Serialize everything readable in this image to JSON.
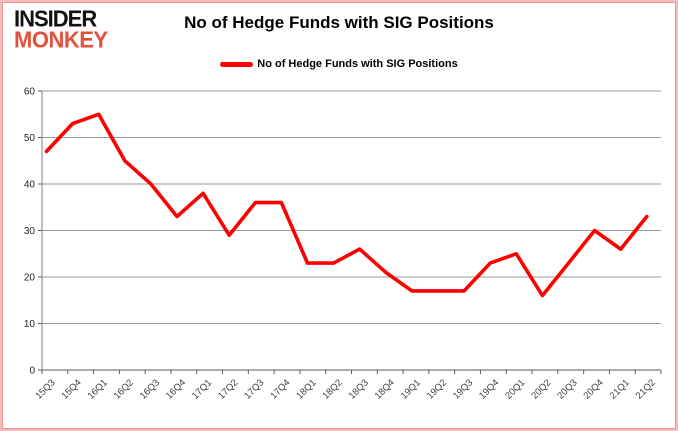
{
  "logo": {
    "line1": "INSIDER",
    "line2": "MONKEY"
  },
  "header": {
    "title": "No of Hedge Funds with SIG Positions"
  },
  "legend": {
    "label": "No of Hedge Funds with SIG Positions"
  },
  "colors": {
    "series_red": "#fe0000",
    "logo_red": "#e2513e",
    "gridline": "#9a9a9a",
    "axis_line": "#7f7f7f",
    "tick_text": "#3f3f3f",
    "border_pink": "#f6bcbc"
  },
  "chart_data": {
    "type": "line",
    "title": "No of Hedge Funds with SIG Positions",
    "categories": [
      "15Q3",
      "15Q4",
      "16Q1",
      "16Q2",
      "16Q3",
      "16Q4",
      "17Q1",
      "17Q2",
      "17Q3",
      "17Q4",
      "18Q1",
      "18Q2",
      "18Q3",
      "18Q4",
      "19Q1",
      "19Q2",
      "19Q3",
      "19Q4",
      "20Q1",
      "20Q2",
      "20Q3",
      "20Q4",
      "21Q1",
      "21Q2"
    ],
    "series": [
      {
        "name": "No of Hedge Funds with SIG Positions",
        "color": "#fe0000",
        "values": [
          47,
          53,
          55,
          45,
          40,
          33,
          38,
          29,
          36,
          36,
          23,
          23,
          26,
          21,
          17,
          17,
          17,
          23,
          25,
          16,
          23,
          30,
          26,
          33
        ]
      }
    ],
    "xlabel": "",
    "ylabel": "",
    "ylim": [
      0,
      60
    ],
    "yticks": [
      0,
      10,
      20,
      30,
      40,
      50,
      60
    ],
    "grid": "horizontal",
    "legend_position": "top-center"
  }
}
